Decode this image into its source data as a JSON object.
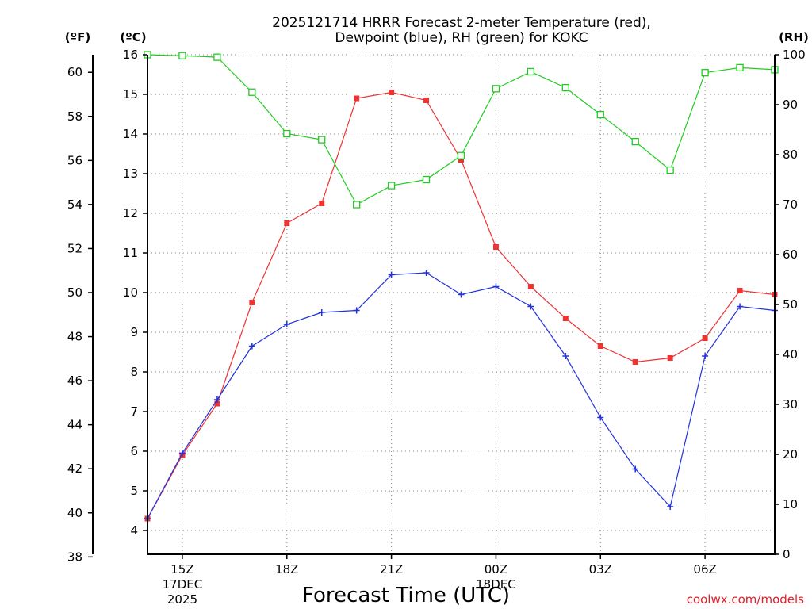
{
  "chart_data": {
    "type": "line",
    "title_lines": [
      "2025121714 HRRR Forecast 2-meter Temperature (red),",
      "Dewpoint (blue), RH (green) for KOKC"
    ],
    "xlabel": "Forecast Time (UTC)",
    "credit": "coolwx.com/models",
    "x_hours": [
      14,
      15,
      16,
      17,
      18,
      19,
      20,
      21,
      22,
      23,
      24,
      25,
      26,
      27,
      28,
      29,
      30,
      31,
      32
    ],
    "xlim": [
      14,
      32
    ],
    "x_ticks": [
      {
        "hour": 15,
        "lines": [
          "15Z",
          "17DEC",
          "2025"
        ]
      },
      {
        "hour": 18,
        "lines": [
          "18Z"
        ]
      },
      {
        "hour": 21,
        "lines": [
          "21Z"
        ]
      },
      {
        "hour": 24,
        "lines": [
          "00Z",
          "18DEC"
        ]
      },
      {
        "hour": 27,
        "lines": [
          "03Z"
        ]
      },
      {
        "hour": 30,
        "lines": [
          "06Z"
        ]
      }
    ],
    "axes": {
      "celsius": {
        "label": "(ºC)",
        "ylim": [
          3.4,
          16
        ],
        "ticks": [
          4,
          5,
          6,
          7,
          8,
          9,
          10,
          11,
          12,
          13,
          14,
          15,
          16
        ]
      },
      "fahrenheit": {
        "label": "(ºF)",
        "ticks": [
          38,
          40,
          42,
          44,
          46,
          48,
          50,
          52,
          54,
          56,
          58,
          60
        ]
      },
      "rh": {
        "label": "(RH)",
        "ylim": [
          0,
          100
        ],
        "ticks": [
          0,
          10,
          20,
          30,
          40,
          50,
          60,
          70,
          80,
          90,
          100
        ]
      }
    },
    "series": [
      {
        "name": "Temperature",
        "axis": "celsius",
        "color": "#ee3333",
        "marker": "filled-square",
        "values": [
          4.3,
          5.9,
          7.2,
          9.75,
          11.75,
          12.25,
          14.9,
          15.05,
          14.85,
          13.35,
          11.15,
          10.15,
          9.35,
          8.65,
          8.25,
          8.35,
          8.85,
          10.05,
          9.95
        ]
      },
      {
        "name": "Dewpoint",
        "axis": "celsius",
        "color": "#2233dd",
        "marker": "plus",
        "values": [
          4.3,
          5.95,
          7.3,
          8.65,
          9.2,
          9.5,
          9.55,
          10.45,
          10.5,
          9.95,
          10.15,
          9.65,
          8.4,
          6.85,
          5.55,
          4.6,
          8.4,
          9.65,
          9.55
        ]
      },
      {
        "name": "RH",
        "axis": "rh",
        "color": "#22cc22",
        "marker": "open-square",
        "values": [
          100,
          99.8,
          99.5,
          92.5,
          84.2,
          83.0,
          70.0,
          73.8,
          75.0,
          79.8,
          93.2,
          96.6,
          93.4,
          88.0,
          82.6,
          76.9,
          96.4,
          97.4,
          97.0
        ]
      }
    ]
  }
}
